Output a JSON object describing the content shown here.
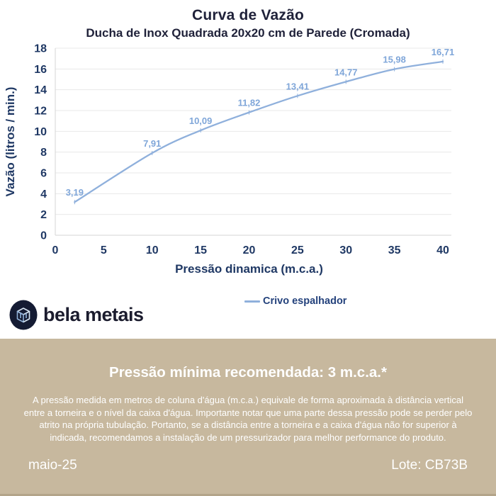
{
  "header": {
    "title": "Curva de Vazão",
    "subtitle": "Ducha de Inox Quadrada 20x20 cm de Parede (Cromada)"
  },
  "chart_data": {
    "type": "line",
    "title": "Curva de Vazão",
    "subtitle": "Ducha de Inox Quadrada 20x20 cm de Parede (Cromada)",
    "series": [
      {
        "name": "Crivo espalhador",
        "x": [
          2,
          10,
          15,
          20,
          25,
          30,
          35,
          40
        ],
        "values": [
          3.19,
          7.91,
          10.09,
          11.82,
          13.41,
          14.77,
          15.98,
          16.71
        ],
        "point_labels": [
          "3,19",
          "7,91",
          "10,09",
          "11,82",
          "13,41",
          "14,77",
          "15,98",
          "16,71"
        ]
      }
    ],
    "xlabel": "Pressão dinamica (m.c.a.)",
    "ylabel": "Vazão (litros / min.)",
    "xlim": [
      0,
      40
    ],
    "ylim": [
      0,
      18
    ],
    "x_ticks": [
      0,
      5,
      10,
      15,
      20,
      25,
      30,
      35,
      40
    ],
    "y_ticks": [
      0,
      2,
      4,
      6,
      8,
      10,
      12,
      14,
      16,
      18
    ],
    "grid": "horizontal",
    "legend_position": "bottom",
    "colors": {
      "line": "#8fb0dc",
      "data_label": "#7fa6d9",
      "axis_label": "#1f3864",
      "grid": "#e8e8e8",
      "axis_line": "#d6d6d6"
    }
  },
  "legend": {
    "label": "Crivo espalhador"
  },
  "brand": {
    "name": "bela metais"
  },
  "footer": {
    "heading": "Pressão mínima recomendada: 3 m.c.a.*",
    "body": "A pressão medida em metros de coluna d'água (m.c.a.) equivale de forma aproximada à distância vertical entre a torneira e o nível da caixa d'água. Importante notar que uma parte dessa pressão pode se perder pelo atrito na própria tubulação. Portanto, se a distância entre a torneira e a caixa d'água não for superior à indicada, recomendamos a instalação de um pressurizador para melhor performance do produto.",
    "date": "maio-25",
    "lot": "Lote: CB73B",
    "bg_color": "#c7b89e"
  }
}
